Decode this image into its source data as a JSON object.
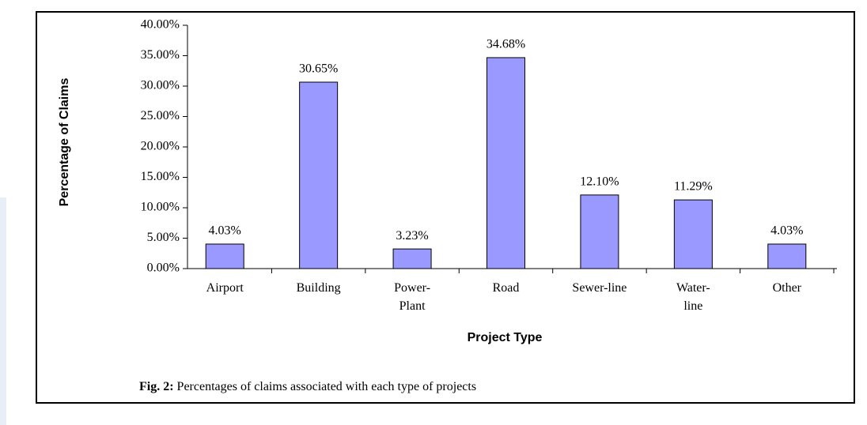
{
  "chart_data": {
    "type": "bar",
    "categories": [
      "Airport",
      "Building",
      "Power-\nPlant",
      "Road",
      "Sewer-line",
      "Water-\nline",
      "Other"
    ],
    "values": [
      4.03,
      30.65,
      3.23,
      34.68,
      12.1,
      11.29,
      4.03
    ],
    "value_labels": [
      "4.03%",
      "30.65%",
      "3.23%",
      "34.68%",
      "12.10%",
      "11.29%",
      "4.03%"
    ],
    "color": "#9999ff",
    "ylim": [
      0,
      40
    ],
    "yticks": [
      {
        "value": 0,
        "label": "0.00%"
      },
      {
        "value": 5,
        "label": "5.00%"
      },
      {
        "value": 10,
        "label": "10.00%"
      },
      {
        "value": 15,
        "label": "15.00%"
      },
      {
        "value": 20,
        "label": "20.00%"
      },
      {
        "value": 25,
        "label": "25.00%"
      },
      {
        "value": 30,
        "label": "30.00%"
      },
      {
        "value": 35,
        "label": "35.00%"
      },
      {
        "value": 40,
        "label": "40.00%"
      }
    ],
    "ylabel": "Percentage of Claims",
    "xlabel": "Project Type",
    "caption_label": "Fig. 2:",
    "caption_text": "Percentages of claims associated with each type of projects"
  }
}
